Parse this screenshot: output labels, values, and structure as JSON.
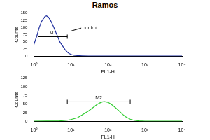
{
  "title": "Ramos",
  "chart_data": [
    {
      "type": "line",
      "x": [
        1,
        1.2,
        1.4,
        1.6,
        1.8,
        2,
        2.2,
        2.5,
        2.8,
        3.2,
        3.6,
        4,
        4.5,
        5,
        6,
        7,
        8,
        9,
        10,
        12,
        15,
        20,
        30,
        50,
        100,
        10000
      ],
      "values": [
        40,
        70,
        100,
        120,
        130,
        138,
        140,
        135,
        125,
        110,
        95,
        80,
        65,
        50,
        35,
        22,
        14,
        9,
        6,
        3,
        2,
        1,
        0,
        0,
        0,
        0
      ],
      "color": "#1f2f9e",
      "log": "x",
      "xlim": [
        1,
        10000
      ],
      "xticks": [
        {
          "value": 1,
          "label": "10⁰"
        },
        {
          "value": 10,
          "label": "10¹"
        },
        {
          "value": 100,
          "label": "10²"
        },
        {
          "value": 1000,
          "label": "10³"
        },
        {
          "value": 10000,
          "label": "10⁴"
        }
      ],
      "ylim": [
        0,
        150
      ],
      "yticks": [
        0,
        25,
        50,
        75,
        100,
        125,
        150
      ],
      "x_label": "FL1-H",
      "y_label": "Counts",
      "gates": [
        {
          "label": "M1",
          "x": [
            1.3,
            8
          ]
        }
      ],
      "annotations": [
        "control"
      ],
      "grid": false
    },
    {
      "type": "line",
      "x": [
        1,
        5,
        8,
        10,
        15,
        20,
        30,
        40,
        50,
        60,
        70,
        80,
        100,
        120,
        150,
        200,
        250,
        300,
        400,
        500,
        700,
        1000,
        10000
      ],
      "values": [
        0,
        1,
        3,
        5,
        10,
        18,
        30,
        40,
        48,
        53,
        56,
        57,
        55,
        50,
        42,
        30,
        20,
        13,
        6,
        3,
        1,
        0,
        0
      ],
      "color": "#2ecc2e",
      "log": "x",
      "xlim": [
        1,
        10000
      ],
      "xticks": [
        {
          "value": 1,
          "label": "10⁰"
        },
        {
          "value": 10,
          "label": "10¹"
        },
        {
          "value": 100,
          "label": "10²"
        },
        {
          "value": 1000,
          "label": "10³"
        },
        {
          "value": 10000,
          "label": "10⁴"
        }
      ],
      "ylim": [
        0,
        125
      ],
      "yticks": [
        0,
        25,
        50,
        75,
        100,
        125
      ],
      "x_label": "FL1-H",
      "y_label": "Counts",
      "gates": [
        {
          "label": "M2",
          "x": [
            8,
            400
          ]
        }
      ],
      "grid": false
    }
  ]
}
